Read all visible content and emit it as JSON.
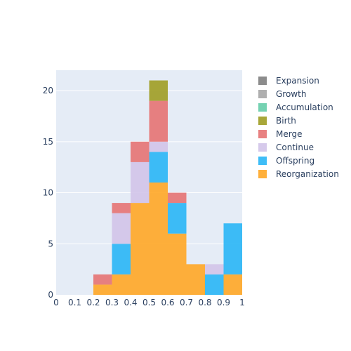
{
  "chart_data": {
    "type": "bar",
    "barmode": "stack",
    "bin_edges": [
      0.2,
      0.3,
      0.4,
      0.5,
      0.6,
      0.7,
      0.8,
      0.9,
      1.0
    ],
    "x_ticks": [
      "0",
      "0.1",
      "0.2",
      "0.3",
      "0.4",
      "0.5",
      "0.6",
      "0.7",
      "0.8",
      "0.9",
      "1"
    ],
    "y_ticks": [
      "0",
      "5",
      "10",
      "15",
      "20"
    ],
    "xlim": [
      0,
      1
    ],
    "ylim": [
      0,
      22
    ],
    "grid": true,
    "legend_position": "right",
    "series": [
      {
        "name": "Reorganization",
        "color": "#FFA726",
        "values": [
          1,
          2,
          9,
          11,
          6,
          3,
          0,
          2
        ]
      },
      {
        "name": "Offspring",
        "color": "#29B6F6",
        "values": [
          0,
          3,
          0,
          3,
          3,
          0,
          2,
          5
        ]
      },
      {
        "name": "Continue",
        "color": "#D1C4E9",
        "values": [
          0,
          3,
          4,
          1,
          0,
          0,
          1,
          0
        ]
      },
      {
        "name": "Merge",
        "color": "#E57373",
        "values": [
          1,
          1,
          2,
          4,
          1,
          0,
          0,
          0
        ]
      },
      {
        "name": "Birth",
        "color": "#9E9D24",
        "values": [
          0,
          0,
          0,
          2,
          0,
          0,
          0,
          0
        ]
      },
      {
        "name": "Accumulation",
        "color": "#66CDAA",
        "values": [
          0,
          0,
          0,
          0,
          0,
          0,
          0,
          0
        ]
      },
      {
        "name": "Growth",
        "color": "#A6A6A6",
        "values": [
          0,
          0,
          0,
          0,
          0,
          0,
          0,
          0
        ]
      },
      {
        "name": "Expansion",
        "color": "#808080",
        "values": [
          0,
          0,
          0,
          0,
          0,
          0,
          0,
          0
        ]
      }
    ],
    "legend_order": [
      "Expansion",
      "Growth",
      "Accumulation",
      "Birth",
      "Merge",
      "Continue",
      "Offspring",
      "Reorganization"
    ]
  }
}
